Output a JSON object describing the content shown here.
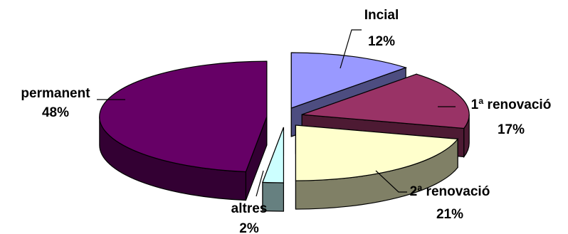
{
  "chart_data": {
    "type": "pie",
    "style": "3d-exploded",
    "title": "",
    "legend": "none",
    "slices": [
      {
        "name": "Incial",
        "value": 12,
        "label": "12%",
        "top": "#9999ff",
        "side": "#4d4d80"
      },
      {
        "name": "1ª renovació",
        "value": 17,
        "label": "17%",
        "top": "#993366",
        "side": "#4d1a33"
      },
      {
        "name": "2ª renovació",
        "value": 21,
        "label": "21%",
        "top": "#ffffcc",
        "side": "#808066"
      },
      {
        "name": "altres",
        "value": 2,
        "label": "2%",
        "top": "#ccffff",
        "side": "#668080"
      },
      {
        "name": "permanent",
        "value": 48,
        "label": "48%",
        "top": "#660066",
        "side": "#330033"
      }
    ]
  }
}
